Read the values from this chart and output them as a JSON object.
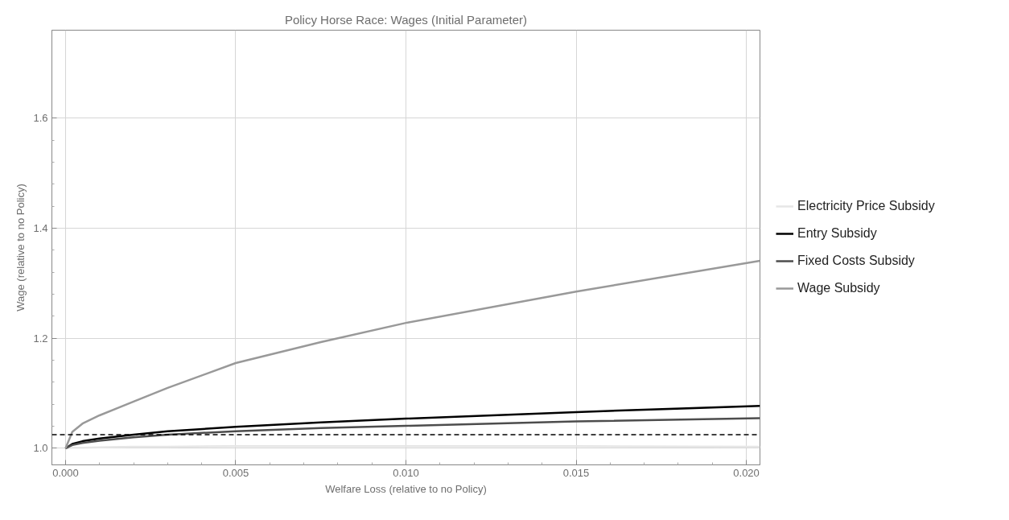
{
  "chart_data": {
    "type": "line",
    "title": "Policy Horse Race: Wages (Initial Parameter)",
    "xlabel": "Welfare Loss (relative to no Policy)",
    "ylabel": "Wage (relative to no Policy)",
    "x": [
      0,
      0.0002,
      0.0005,
      0.001,
      0.002,
      0.003,
      0.005,
      0.0075,
      0.01,
      0.015,
      0.0204
    ],
    "series": [
      {
        "name": "Electricity Price Subsidy",
        "color": "#e6e6e6",
        "values": [
          1.0,
          1.001,
          1.001,
          1.002,
          1.003,
          1.003,
          1.004,
          1.004,
          1.004,
          1.004,
          1.003
        ]
      },
      {
        "name": "Entry Subsidy",
        "color": "#000000",
        "values": [
          1.0,
          1.008,
          1.013,
          1.018,
          1.025,
          1.031,
          1.039,
          1.047,
          1.054,
          1.066,
          1.077
        ]
      },
      {
        "name": "Fixed Costs Subsidy",
        "color": "#4d4d4d",
        "values": [
          1.0,
          1.006,
          1.01,
          1.014,
          1.02,
          1.025,
          1.031,
          1.037,
          1.041,
          1.049,
          1.055
        ]
      },
      {
        "name": "Wage Subsidy",
        "color": "#999999",
        "values": [
          1.0,
          1.03,
          1.045,
          1.06,
          1.085,
          1.11,
          1.155,
          1.193,
          1.228,
          1.285,
          1.341
        ]
      }
    ],
    "xlim": [
      -0.0004,
      0.0204
    ],
    "ylim": [
      0.97,
      1.76
    ],
    "xticks": [
      {
        "value": 0,
        "label": "0.000"
      },
      {
        "value": 0.005,
        "label": "0.005"
      },
      {
        "value": 0.01,
        "label": "0.010"
      },
      {
        "value": 0.015,
        "label": "0.015"
      },
      {
        "value": 0.02,
        "label": "0.020"
      }
    ],
    "yticks": [
      {
        "value": 1.0,
        "label": "1.0"
      },
      {
        "value": 1.2,
        "label": "1.2"
      },
      {
        "value": 1.4,
        "label": "1.4"
      },
      {
        "value": 1.6,
        "label": "1.6"
      }
    ],
    "ref_lines": [
      {
        "axis": "y",
        "value": 1.025,
        "color": "#000000",
        "line_style": "dashed"
      }
    ],
    "grid": true,
    "legend": "right",
    "marker": "none",
    "line_style": "solid"
  }
}
